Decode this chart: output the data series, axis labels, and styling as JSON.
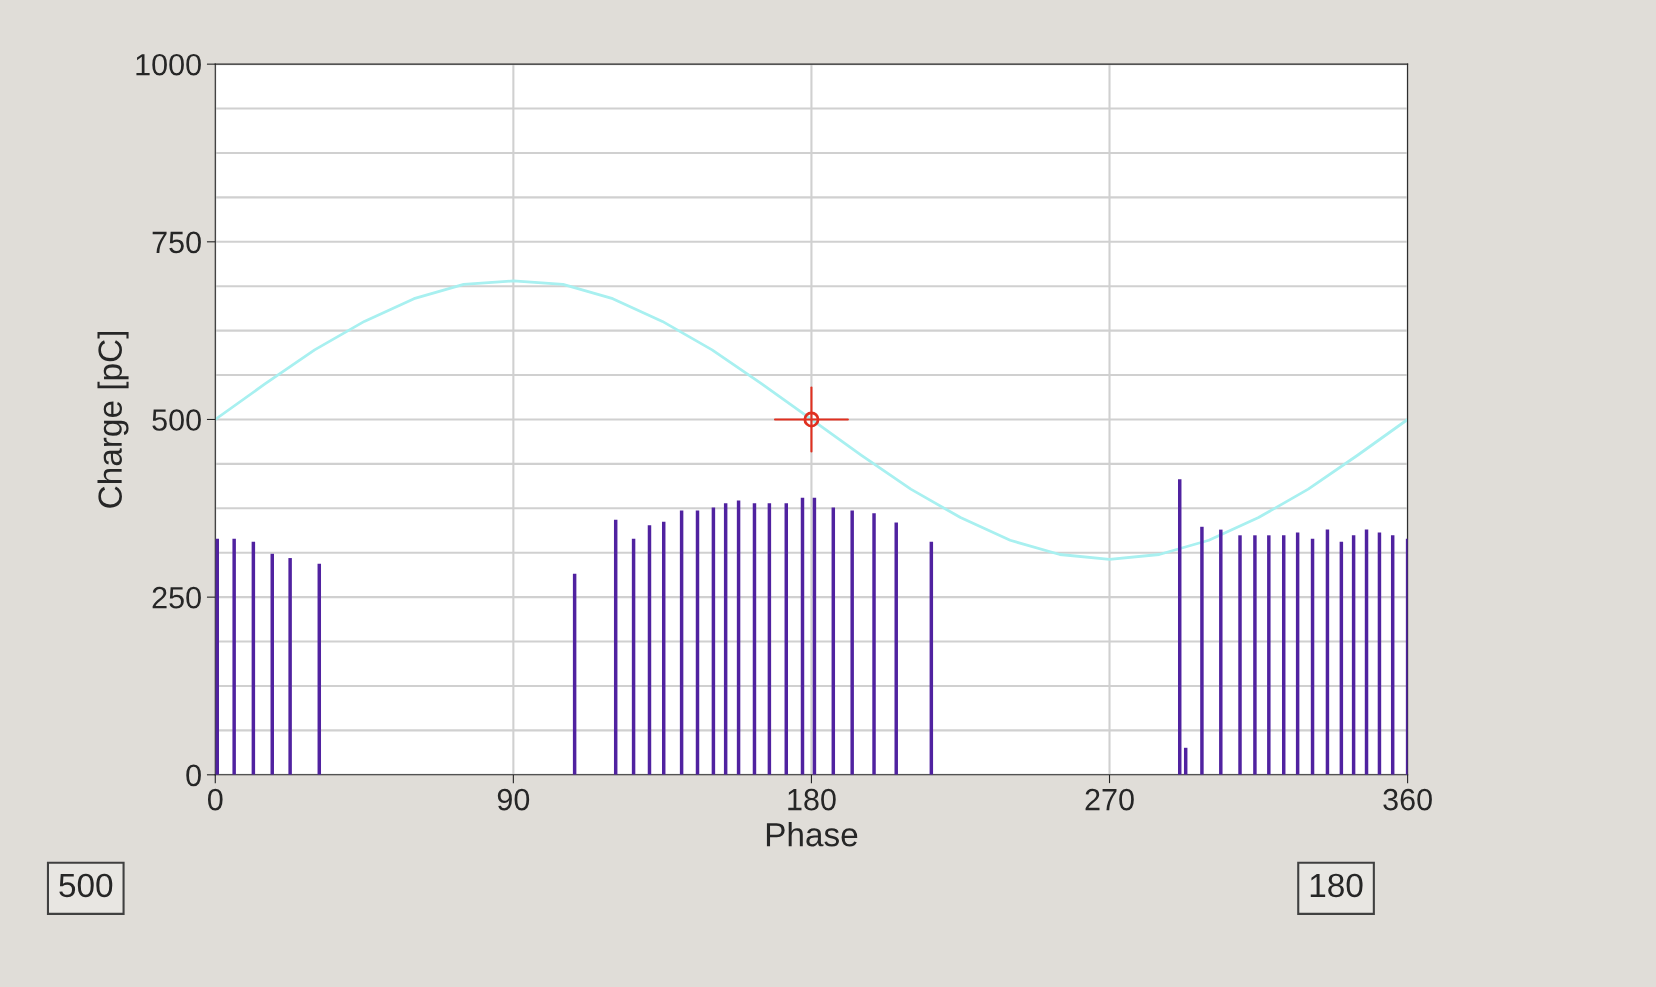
{
  "chart_data": {
    "type": "bar",
    "xlabel": "Phase",
    "ylabel": "Charge [pC]",
    "xlim": [
      0,
      360
    ],
    "xticks": [
      0,
      90,
      180,
      270,
      360
    ],
    "ylim": [
      0,
      1000
    ],
    "yticks": [
      0,
      {
        "value": 62.5,
        "label": null
      },
      {
        "value": 125,
        "label": null
      },
      {
        "value": 187.5,
        "label": null
      },
      250,
      {
        "value": 312.5,
        "label": null
      },
      {
        "value": 375,
        "label": null
      },
      {
        "value": 437.5,
        "label": null
      },
      500,
      {
        "value": 562.5,
        "label": null
      },
      {
        "value": 625,
        "label": null
      },
      {
        "value": 687.5,
        "label": null
      },
      750,
      {
        "value": 812.5,
        "label": null
      },
      {
        "value": 875,
        "label": null
      },
      {
        "value": 937.5,
        "label": null
      },
      1000
    ],
    "grid": true,
    "legend": false,
    "annotations": [
      "500",
      "180"
    ],
    "series": [
      {
        "color": "#5022a0",
        "x": [
          0.6,
          5.7,
          11.5,
          17.2,
          22.6,
          31.4,
          108.5,
          120.9,
          126.3,
          131.1,
          135.4,
          140.8,
          145.6,
          150.4,
          154.1,
          158,
          162.8,
          167.3,
          172.4,
          177.3,
          180.9,
          186.6,
          192.3,
          198.9,
          205.6,
          216.2,
          291.2,
          293,
          297.9,
          303.6,
          309.4,
          313.9,
          318.1,
          322.6,
          326.8,
          331.3,
          335.8,
          340,
          343.7,
          347.6,
          351.5,
          355.5,
          360
        ],
        "values": [
          332,
          332,
          328,
          311,
          305,
          297,
          283,
          359,
          332,
          351,
          356,
          372,
          372,
          376,
          382,
          386,
          382,
          382,
          382,
          390,
          390,
          376,
          372,
          368,
          355,
          328,
          416,
          38,
          349,
          345,
          337,
          337,
          337,
          337,
          341,
          332,
          345,
          328,
          337,
          345,
          341,
          337,
          332
        ]
      },
      {
        "type": "line",
        "color": "#a8f0f0",
        "x": [
          0,
          15,
          30,
          45,
          60,
          75,
          90,
          105,
          120,
          135,
          150,
          165,
          180,
          195,
          210,
          225,
          240,
          255,
          270,
          285,
          300,
          315,
          330,
          345,
          360
        ],
        "values": [
          500,
          550,
          598,
          638,
          670,
          690,
          695,
          690,
          670,
          638,
          598,
          550,
          500,
          450,
          402,
          362,
          330,
          310,
          303,
          310,
          330,
          362,
          402,
          450,
          500
        ]
      },
      {
        "type": "scatter",
        "color": "#e03020",
        "marker": "circle",
        "x": [
          180
        ],
        "values": [
          500
        ]
      }
    ]
  }
}
